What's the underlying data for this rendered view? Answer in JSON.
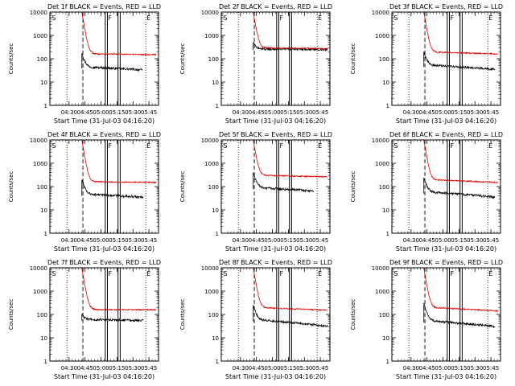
{
  "figure": {
    "rows": 3,
    "cols": 3,
    "ylabel": "Counts/sec",
    "xlabel": "Start Time (31-Jul-03 04:16:20)",
    "title_template": "BLACK = Events, RED = LLD",
    "xlim_minutes": [
      -4,
      98
    ],
    "ylim": [
      1,
      10000
    ],
    "xticks": [
      {
        "label": "04:30",
        "min": 14
      },
      {
        "label": "04:45",
        "min": 29
      },
      {
        "label": "05:00",
        "min": 44
      },
      {
        "label": "05:15",
        "min": 59
      },
      {
        "label": "05:30",
        "min": 74
      },
      {
        "label": "05:45",
        "min": 89
      }
    ],
    "yticks": [
      {
        "label": "1",
        "value": 1
      },
      {
        "label": "10",
        "value": 10
      },
      {
        "label": "100",
        "value": 100
      },
      {
        "label": "1000",
        "value": 1000
      },
      {
        "label": "10000",
        "value": 10000
      }
    ],
    "markers": {
      "S": "S",
      "F": "F",
      "E": "E"
    },
    "colors": {
      "events": "#000000",
      "lld": "#e00000",
      "axes": "#000000"
    }
  },
  "chart_data": [
    {
      "type": "line",
      "title": "Det 1f BLACK = Events, RED = LLD",
      "detector": "Det 1f",
      "ylabel": "Counts/sec",
      "xlabel": "Start Time (31-Jul-03 04:16:20)",
      "series": [
        {
          "name": "Events",
          "color": "#000000",
          "start_min": 26,
          "end_min": 83,
          "peak": 180,
          "plateau": 42,
          "end_value": 33
        },
        {
          "name": "LLD",
          "color": "#e00000",
          "start_min": -3,
          "end_min": 96,
          "peak": 10000,
          "plateau": 160,
          "end_value": 150
        }
      ],
      "vlines": {
        "dotted": [
          12,
          86
        ],
        "dashed": 27,
        "solid": [
          48,
          50,
          60,
          62
        ],
        "S": -3,
        "F": 50,
        "E": 86
      }
    },
    {
      "type": "line",
      "title": "Det 2f BLACK = Events, RED = LLD",
      "detector": "Det 2f",
      "ylabel": "Counts/sec",
      "xlabel": "Start Time (31-Jul-03 04:16:20)",
      "series": [
        {
          "name": "Events",
          "color": "#000000",
          "start_min": 26,
          "end_min": 96,
          "peak": 500,
          "plateau": 260,
          "end_value": 250
        },
        {
          "name": "LLD",
          "color": "#e00000",
          "start_min": -3,
          "end_min": 96,
          "peak": 10000,
          "plateau": 290,
          "end_value": 270
        }
      ],
      "vlines": {
        "dotted": [
          12,
          86
        ],
        "dashed": 27,
        "solid": [
          48,
          50,
          60,
          62
        ],
        "S": -3,
        "F": 50,
        "E": 86
      }
    },
    {
      "type": "line",
      "title": "Det 3f BLACK = Events, RED = LLD",
      "detector": "Det 3f",
      "ylabel": "Counts/sec",
      "xlabel": "Start Time (31-Jul-03 04:16:20)",
      "series": [
        {
          "name": "Events",
          "color": "#000000",
          "start_min": 26,
          "end_min": 93,
          "peak": 200,
          "plateau": 50,
          "end_value": 35
        },
        {
          "name": "LLD",
          "color": "#e00000",
          "start_min": -3,
          "end_min": 96,
          "peak": 10000,
          "plateau": 190,
          "end_value": 160
        }
      ],
      "vlines": {
        "dotted": [
          12,
          86
        ],
        "dashed": 27,
        "solid": [
          48,
          50,
          60,
          62
        ],
        "S": -3,
        "F": 50,
        "E": 86
      }
    },
    {
      "type": "line",
      "title": "Det 4f BLACK = Events, RED = LLD",
      "detector": "Det 4f",
      "ylabel": "Counts/sec",
      "xlabel": "Start Time (31-Jul-03 04:16:20)",
      "series": [
        {
          "name": "Events",
          "color": "#000000",
          "start_min": 26,
          "end_min": 84,
          "peak": 200,
          "plateau": 45,
          "end_value": 35
        },
        {
          "name": "LLD",
          "color": "#e00000",
          "start_min": -3,
          "end_min": 96,
          "peak": 10000,
          "plateau": 160,
          "end_value": 150
        }
      ],
      "vlines": {
        "dotted": [
          12,
          86
        ],
        "dashed": 27,
        "solid": [
          48,
          50,
          60,
          62
        ],
        "S": -3,
        "F": 50,
        "E": 86
      }
    },
    {
      "type": "line",
      "title": "Det 5f BLACK = Events, RED = LLD",
      "detector": "Det 5f",
      "ylabel": "Counts/sec",
      "xlabel": "Start Time (31-Jul-03 04:16:20)",
      "series": [
        {
          "name": "Events",
          "color": "#000000",
          "start_min": 26,
          "end_min": 83,
          "peak": 400,
          "plateau": 85,
          "end_value": 65
        },
        {
          "name": "LLD",
          "color": "#e00000",
          "start_min": -3,
          "end_min": 96,
          "peak": 10000,
          "plateau": 300,
          "end_value": 260
        }
      ],
      "vlines": {
        "dotted": [
          12,
          86
        ],
        "dashed": 27,
        "solid": [
          48,
          50,
          60,
          62
        ],
        "S": -3,
        "F": 50,
        "E": 86
      }
    },
    {
      "type": "line",
      "title": "Det 6f BLACK = Events, RED = LLD",
      "detector": "Det 6f",
      "ylabel": "Counts/sec",
      "xlabel": "Start Time (31-Jul-03 04:16:20)",
      "series": [
        {
          "name": "Events",
          "color": "#000000",
          "start_min": 26,
          "end_min": 93,
          "peak": 250,
          "plateau": 55,
          "end_value": 35
        },
        {
          "name": "LLD",
          "color": "#e00000",
          "start_min": -3,
          "end_min": 96,
          "peak": 10000,
          "plateau": 190,
          "end_value": 150
        }
      ],
      "vlines": {
        "dotted": [
          12,
          86
        ],
        "dashed": 27,
        "solid": [
          48,
          50,
          60,
          62
        ],
        "S": -3,
        "F": 50,
        "E": 86
      }
    },
    {
      "type": "line",
      "title": "Det 7f BLACK = Events, RED = LLD",
      "detector": "Det 7f",
      "ylabel": "Counts/sec",
      "xlabel": "Start Time (31-Jul-03 04:16:20)",
      "series": [
        {
          "name": "Events",
          "color": "#000000",
          "start_min": 26,
          "end_min": 84,
          "peak": 100,
          "plateau": 60,
          "end_value": 55
        },
        {
          "name": "LLD",
          "color": "#e00000",
          "start_min": -3,
          "end_min": 96,
          "peak": 10000,
          "plateau": 160,
          "end_value": 160
        }
      ],
      "vlines": {
        "dotted": [
          12,
          86
        ],
        "dashed": 27,
        "solid": [
          48,
          50,
          60,
          62
        ],
        "S": -3,
        "F": 50,
        "E": 86
      }
    },
    {
      "type": "line",
      "title": "Det 8f BLACK = Events, RED = LLD",
      "detector": "Det 8f",
      "ylabel": "Counts/sec",
      "xlabel": "Start Time (31-Jul-03 04:16:20)",
      "series": [
        {
          "name": "Events",
          "color": "#000000",
          "start_min": 26,
          "end_min": 96,
          "peak": 250,
          "plateau": 55,
          "end_value": 30
        },
        {
          "name": "LLD",
          "color": "#e00000",
          "start_min": -3,
          "end_min": 96,
          "peak": 10000,
          "plateau": 190,
          "end_value": 150
        }
      ],
      "vlines": {
        "dotted": [
          12,
          86
        ],
        "dashed": 27,
        "solid": [
          48,
          50,
          60,
          62
        ],
        "S": -3,
        "F": 50,
        "E": 86
      }
    },
    {
      "type": "line",
      "title": "Det 9f BLACK = Events, RED = LLD",
      "detector": "Det 9f",
      "ylabel": "Counts/sec",
      "xlabel": "Start Time (31-Jul-03 04:16:20)",
      "series": [
        {
          "name": "Events",
          "color": "#000000",
          "start_min": 26,
          "end_min": 93,
          "peak": 300,
          "plateau": 50,
          "end_value": 30
        },
        {
          "name": "LLD",
          "color": "#e00000",
          "start_min": -3,
          "end_min": 96,
          "peak": 10000,
          "plateau": 190,
          "end_value": 140
        }
      ],
      "vlines": {
        "dotted": [
          12,
          86
        ],
        "dashed": 27,
        "solid": [
          48,
          50,
          60,
          62
        ],
        "S": -3,
        "F": 50,
        "E": 86
      }
    }
  ]
}
